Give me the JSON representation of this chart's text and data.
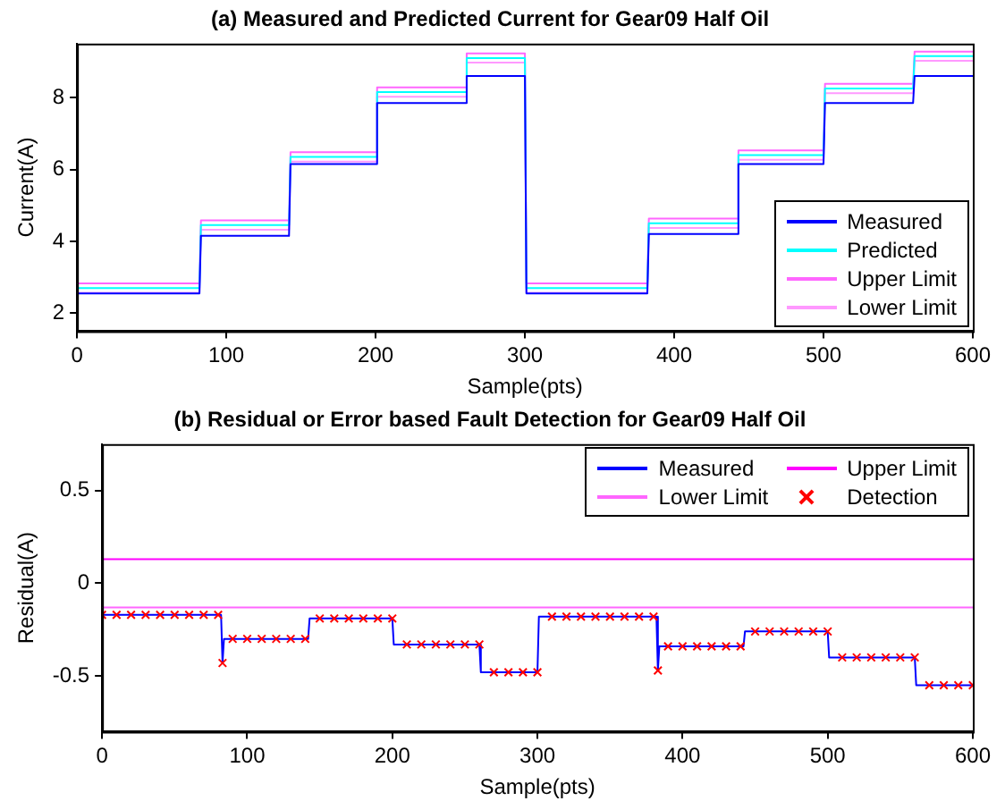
{
  "chart_data": [
    {
      "type": "line",
      "title": "(a) Measured and Predicted Current for Gear09 Half Oil",
      "xlabel": "Sample(pts)",
      "ylabel": "Current(A)",
      "xlim": [
        0,
        600
      ],
      "xticks": [
        0,
        100,
        200,
        300,
        400,
        500,
        600
      ],
      "ylim": [
        1.5,
        9.5
      ],
      "yticks": [
        2,
        4,
        6,
        8
      ],
      "grid": false,
      "legend": "bottom right",
      "marker": "none",
      "series": [
        {
          "name": "Measured",
          "color": "#0000ff",
          "x": [
            0,
            82,
            83,
            142,
            143,
            200,
            201,
            260,
            261,
            300,
            301,
            382,
            383,
            442,
            443,
            500,
            501,
            560,
            561,
            600
          ],
          "values": [
            2.55,
            2.55,
            4.15,
            4.15,
            6.15,
            6.15,
            7.85,
            7.85,
            8.6,
            8.6,
            2.55,
            2.55,
            4.2,
            4.2,
            6.15,
            6.15,
            7.85,
            7.85,
            8.6,
            8.6
          ]
        },
        {
          "name": "Predicted",
          "color": "#00ffff",
          "x": [
            0,
            82,
            83,
            142,
            143,
            200,
            201,
            260,
            261,
            300,
            301,
            382,
            383,
            442,
            443,
            500,
            501,
            560,
            561,
            600
          ],
          "values": [
            2.7,
            2.7,
            4.45,
            4.45,
            6.35,
            6.35,
            8.15,
            8.15,
            9.1,
            9.1,
            2.7,
            2.7,
            4.5,
            4.5,
            6.4,
            6.4,
            8.25,
            8.25,
            9.15,
            9.15
          ]
        },
        {
          "name": "Upper Limit",
          "color": "#ff66ff",
          "x": [
            0,
            82,
            83,
            142,
            143,
            200,
            201,
            260,
            261,
            300,
            301,
            382,
            383,
            442,
            443,
            500,
            501,
            560,
            561,
            600
          ],
          "values": [
            2.83,
            2.83,
            4.58,
            4.58,
            6.48,
            6.48,
            8.28,
            8.28,
            9.23,
            9.23,
            2.83,
            2.83,
            4.63,
            4.63,
            6.53,
            6.53,
            8.38,
            8.38,
            9.28,
            9.28
          ]
        },
        {
          "name": "Lower Limit",
          "color": "#ff99ff",
          "x": [
            0,
            82,
            83,
            142,
            143,
            200,
            201,
            260,
            261,
            300,
            301,
            382,
            383,
            442,
            443,
            500,
            501,
            560,
            561,
            600
          ],
          "values": [
            2.57,
            2.57,
            4.32,
            4.32,
            6.22,
            6.22,
            8.02,
            8.02,
            8.97,
            8.97,
            2.57,
            2.57,
            4.37,
            4.37,
            6.27,
            6.27,
            8.12,
            8.12,
            9.02,
            9.02
          ]
        }
      ]
    },
    {
      "type": "line",
      "title": "(b) Residual or Error based Fault Detection for Gear09 Half Oil",
      "xlabel": "Sample(pts)",
      "ylabel": "Residual(A)",
      "xlim": [
        0,
        600
      ],
      "xticks": [
        0,
        100,
        200,
        300,
        400,
        500,
        600
      ],
      "ylim": [
        -0.8,
        0.75
      ],
      "yticks": [
        -0.5,
        0,
        0.5
      ],
      "grid": false,
      "legend": "top right",
      "marker": "none",
      "series": [
        {
          "name": "Measured",
          "color": "#0000ff",
          "x": [
            0,
            82,
            83,
            84,
            142,
            143,
            200,
            201,
            260,
            261,
            300,
            301,
            382,
            383,
            384,
            442,
            443,
            500,
            501,
            560,
            561,
            600
          ],
          "values": [
            -0.17,
            -0.17,
            -0.43,
            -0.3,
            -0.3,
            -0.19,
            -0.19,
            -0.33,
            -0.33,
            -0.48,
            -0.48,
            -0.18,
            -0.18,
            -0.47,
            -0.34,
            -0.34,
            -0.26,
            -0.26,
            -0.4,
            -0.4,
            -0.55,
            -0.55
          ]
        },
        {
          "name": "Upper Limit",
          "color": "#ff00ff",
          "x": [
            0,
            600
          ],
          "values": [
            0.13,
            0.13
          ]
        },
        {
          "name": "Lower Limit",
          "color": "#ff66ff",
          "x": [
            0,
            600
          ],
          "values": [
            -0.13,
            -0.13
          ]
        },
        {
          "name": "Detection",
          "type": "scatter",
          "marker": "cross",
          "color": "#ff0000",
          "x": [
            0,
            10,
            20,
            30,
            40,
            50,
            60,
            70,
            80,
            83,
            90,
            100,
            110,
            120,
            130,
            140,
            150,
            160,
            170,
            180,
            190,
            200,
            210,
            220,
            230,
            240,
            250,
            260,
            270,
            280,
            290,
            300,
            310,
            320,
            330,
            340,
            350,
            360,
            370,
            380,
            383,
            390,
            400,
            410,
            420,
            430,
            440,
            450,
            460,
            470,
            480,
            490,
            500,
            510,
            520,
            530,
            540,
            550,
            560,
            570,
            580,
            590,
            600
          ],
          "values": [
            -0.17,
            -0.17,
            -0.17,
            -0.17,
            -0.17,
            -0.17,
            -0.17,
            -0.17,
            -0.17,
            -0.43,
            -0.3,
            -0.3,
            -0.3,
            -0.3,
            -0.3,
            -0.3,
            -0.19,
            -0.19,
            -0.19,
            -0.19,
            -0.19,
            -0.19,
            -0.33,
            -0.33,
            -0.33,
            -0.33,
            -0.33,
            -0.33,
            -0.48,
            -0.48,
            -0.48,
            -0.48,
            -0.18,
            -0.18,
            -0.18,
            -0.18,
            -0.18,
            -0.18,
            -0.18,
            -0.18,
            -0.47,
            -0.34,
            -0.34,
            -0.34,
            -0.34,
            -0.34,
            -0.34,
            -0.26,
            -0.26,
            -0.26,
            -0.26,
            -0.26,
            -0.26,
            -0.4,
            -0.4,
            -0.4,
            -0.4,
            -0.4,
            -0.4,
            -0.55,
            -0.55,
            -0.55,
            -0.55
          ]
        }
      ]
    }
  ]
}
